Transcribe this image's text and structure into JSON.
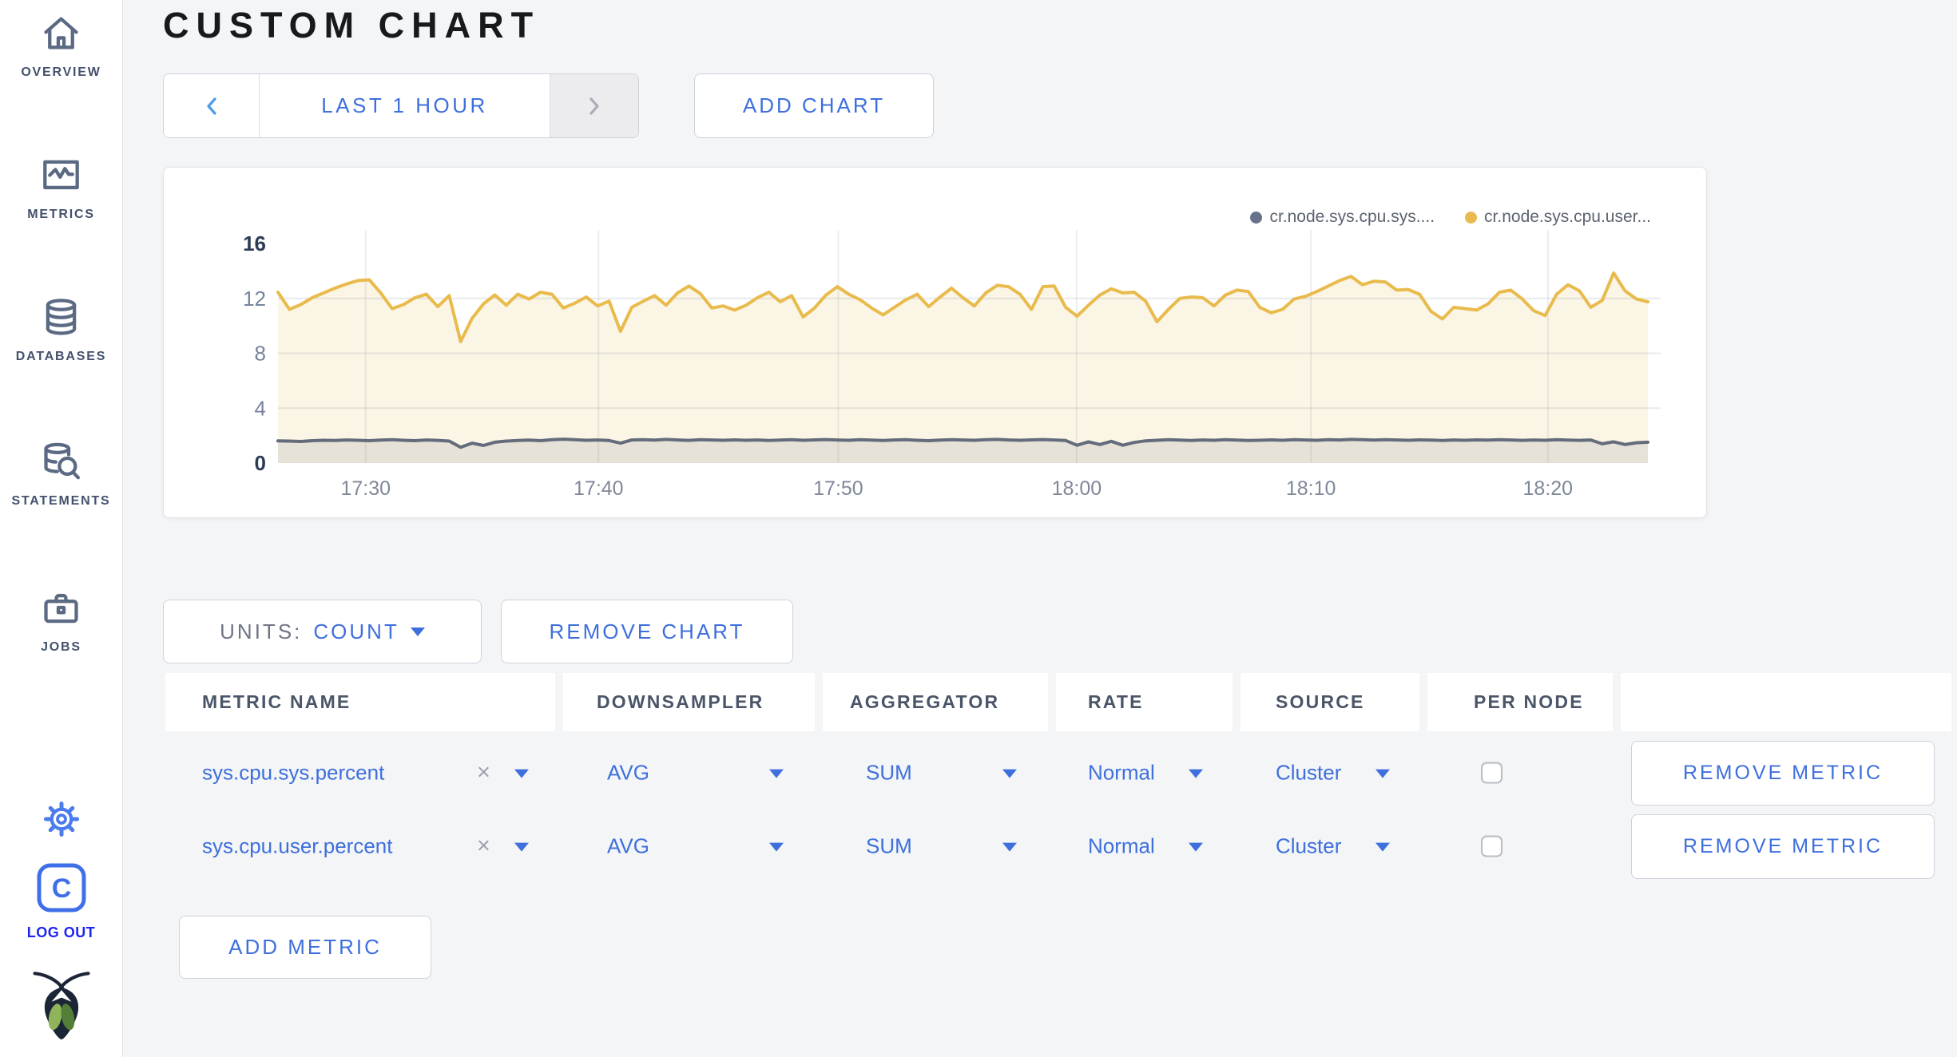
{
  "sidebar": {
    "items": [
      {
        "id": "overview",
        "label": "OVERVIEW"
      },
      {
        "id": "metrics",
        "label": "METRICS"
      },
      {
        "id": "databases",
        "label": "DATABASES"
      },
      {
        "id": "statements",
        "label": "STATEMENTS"
      },
      {
        "id": "jobs",
        "label": "JOBS"
      }
    ],
    "logout_label": "LOG OUT"
  },
  "header": {
    "title": "CUSTOM CHART"
  },
  "toolbar": {
    "time_range_label": "LAST 1 HOUR",
    "add_chart_label": "ADD CHART"
  },
  "chart_card": {
    "legend": [
      {
        "label": "cr.node.sys.cpu.sys....",
        "color": "#66718A"
      },
      {
        "label": "cr.node.sys.cpu.user...",
        "color": "#E8BA4F"
      }
    ]
  },
  "chart_data": {
    "type": "line",
    "title": "",
    "xlabel": "",
    "ylabel": "",
    "ylim": [
      0,
      16
    ],
    "yticks": [
      0,
      4,
      8,
      12,
      16
    ],
    "grid": true,
    "legend_position": "top-right",
    "xticks": [
      {
        "pos": 0.064,
        "label": "17:30"
      },
      {
        "pos": 0.234,
        "label": "17:40"
      },
      {
        "pos": 0.409,
        "label": "17:50"
      },
      {
        "pos": 0.583,
        "label": "18:00"
      },
      {
        "pos": 0.754,
        "label": "18:10"
      },
      {
        "pos": 0.927,
        "label": "18:20"
      }
    ],
    "series": [
      {
        "name": "cr.node.sys.cpu.sys....",
        "color": "#646C7C",
        "fill": "rgba(139,143,160,0.18)",
        "values": [
          1.62,
          1.6,
          1.57,
          1.63,
          1.66,
          1.64,
          1.68,
          1.66,
          1.63,
          1.67,
          1.7,
          1.66,
          1.63,
          1.68,
          1.65,
          1.6,
          1.15,
          1.45,
          1.28,
          1.52,
          1.6,
          1.64,
          1.67,
          1.63,
          1.7,
          1.74,
          1.7,
          1.66,
          1.68,
          1.64,
          1.45,
          1.68,
          1.7,
          1.67,
          1.72,
          1.68,
          1.65,
          1.7,
          1.68,
          1.66,
          1.69,
          1.66,
          1.68,
          1.64,
          1.67,
          1.7,
          1.66,
          1.69,
          1.71,
          1.68,
          1.66,
          1.7,
          1.67,
          1.64,
          1.68,
          1.7,
          1.66,
          1.63,
          1.67,
          1.7,
          1.68,
          1.66,
          1.7,
          1.72,
          1.68,
          1.66,
          1.69,
          1.71,
          1.68,
          1.64,
          1.3,
          1.55,
          1.35,
          1.58,
          1.3,
          1.5,
          1.62,
          1.66,
          1.7,
          1.67,
          1.64,
          1.68,
          1.66,
          1.7,
          1.67,
          1.64,
          1.66,
          1.69,
          1.66,
          1.7,
          1.68,
          1.66,
          1.7,
          1.68,
          1.72,
          1.7,
          1.67,
          1.7,
          1.68,
          1.66,
          1.69,
          1.67,
          1.64,
          1.68,
          1.66,
          1.69,
          1.67,
          1.7,
          1.68,
          1.65,
          1.68,
          1.66,
          1.7,
          1.67,
          1.65,
          1.68,
          1.4,
          1.55,
          1.35,
          1.48,
          1.52
        ]
      },
      {
        "name": "cr.node.sys.cpu.user...",
        "color": "#E9BB4D",
        "fill": "#FAF5E5",
        "values": [
          12.45,
          11.2,
          11.55,
          12.05,
          12.4,
          12.75,
          13.05,
          13.3,
          13.35,
          12.4,
          11.25,
          11.55,
          12.05,
          12.3,
          11.4,
          12.2,
          8.85,
          10.55,
          11.6,
          12.25,
          11.5,
          12.3,
          11.95,
          12.45,
          12.3,
          11.3,
          11.65,
          12.1,
          11.45,
          11.8,
          9.6,
          11.35,
          11.8,
          12.2,
          11.5,
          12.4,
          12.9,
          12.35,
          11.3,
          11.45,
          11.15,
          11.5,
          12.05,
          12.45,
          11.75,
          12.2,
          10.65,
          11.3,
          12.25,
          12.85,
          12.3,
          11.9,
          11.3,
          10.8,
          11.35,
          11.9,
          12.3,
          11.4,
          12.1,
          12.75,
          12.05,
          11.45,
          12.4,
          12.95,
          12.85,
          12.3,
          11.2,
          12.85,
          12.9,
          11.35,
          10.7,
          11.5,
          12.25,
          12.7,
          12.4,
          12.45,
          11.8,
          10.3,
          11.2,
          12.0,
          12.1,
          12.05,
          11.45,
          12.25,
          12.6,
          12.5,
          11.35,
          10.95,
          11.2,
          11.95,
          12.15,
          12.5,
          12.9,
          13.3,
          13.6,
          13.0,
          13.25,
          13.2,
          12.6,
          12.65,
          12.3,
          11.05,
          10.5,
          11.35,
          11.25,
          11.15,
          11.6,
          12.45,
          12.6,
          11.95,
          11.1,
          10.75,
          12.3,
          13.0,
          12.55,
          11.35,
          11.85,
          13.85,
          12.55,
          11.95,
          11.75
        ]
      }
    ]
  },
  "controls": {
    "units_label": "UNITS:",
    "units_value": "COUNT",
    "remove_chart_label": "REMOVE CHART",
    "add_metric_label": "ADD METRIC",
    "remove_metric_label": "REMOVE METRIC",
    "clear_icon": "×"
  },
  "table": {
    "headers": [
      "METRIC NAME",
      "DOWNSAMPLER",
      "AGGREGATOR",
      "RATE",
      "SOURCE",
      "PER NODE",
      ""
    ],
    "rows": [
      {
        "metric": "sys.cpu.sys.percent",
        "downsampler": "AVG",
        "aggregator": "SUM",
        "rate": "Normal",
        "source": "Cluster",
        "per_node_checked": false
      },
      {
        "metric": "sys.cpu.user.percent",
        "downsampler": "AVG",
        "aggregator": "SUM",
        "rate": "Normal",
        "source": "Cluster",
        "per_node_checked": false
      }
    ]
  },
  "colors": {
    "accent_blue": "#3E6FDD",
    "logout_blue": "#1D25F0",
    "sidebar_icon": "#5B6A83",
    "series_sys_line": "#646C7C",
    "series_user_line": "#E9BB4D",
    "user_area_fill": "#FAF5E5",
    "page_background": "#F4F5F7"
  }
}
